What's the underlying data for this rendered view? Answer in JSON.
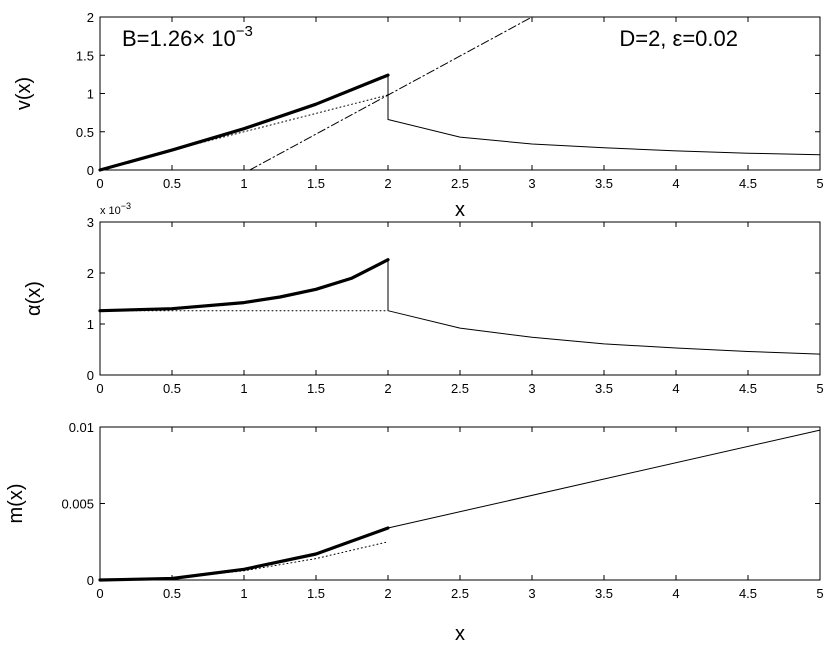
{
  "chart_data": [
    {
      "type": "line",
      "xlabel": "x",
      "ylabel": "v(x)",
      "xlim": [
        0,
        5
      ],
      "ylim": [
        0,
        2
      ],
      "x_ticks": [
        "0",
        "0.5",
        "1",
        "1.5",
        "2",
        "2.5",
        "3",
        "3.5",
        "4",
        "4.5",
        "5"
      ],
      "y_ticks": [
        "0",
        "0.5",
        "1",
        "1.5",
        "2"
      ],
      "annotations": [
        {
          "text": "B=1.26× 10",
          "sup": "−3",
          "position": "top-left"
        },
        {
          "text": "D=2, ε=0.02",
          "position": "top-right"
        }
      ],
      "series": [
        {
          "style": "thick",
          "color": "#000000",
          "x": [
            0,
            0.5,
            1,
            1.5,
            2
          ],
          "y": [
            0,
            0.26,
            0.54,
            0.86,
            1.24
          ]
        },
        {
          "style": "thin",
          "color": "#000000",
          "x": [
            2,
            2,
            2.5,
            3,
            3.5,
            4,
            4.5,
            5
          ],
          "y": [
            1.24,
            0.66,
            0.43,
            0.34,
            0.29,
            0.25,
            0.22,
            0.2
          ]
        },
        {
          "style": "dotted",
          "color": "#000000",
          "x": [
            0,
            0.5,
            1,
            1.5,
            2
          ],
          "y": [
            0,
            0.26,
            0.5,
            0.74,
            0.98
          ]
        },
        {
          "style": "dashdot",
          "color": "#000000",
          "x": [
            1.04,
            3
          ],
          "y": [
            0,
            2
          ]
        }
      ]
    },
    {
      "type": "line",
      "xlabel": "x",
      "ylabel": "α(x)",
      "xlim": [
        0,
        5
      ],
      "ylim": [
        0,
        3
      ],
      "y_multiplier": "x 10",
      "y_multiplier_exp": "−3",
      "x_ticks": [
        "0",
        "0.5",
        "1",
        "1.5",
        "2",
        "2.5",
        "3",
        "3.5",
        "4",
        "4.5",
        "5"
      ],
      "y_ticks": [
        "0",
        "1",
        "2",
        "3"
      ],
      "series": [
        {
          "style": "thick",
          "color": "#000000",
          "x": [
            0,
            0.5,
            1,
            1.25,
            1.5,
            1.75,
            2
          ],
          "y": [
            1.26,
            1.3,
            1.42,
            1.53,
            1.68,
            1.9,
            2.26
          ]
        },
        {
          "style": "thin",
          "color": "#000000",
          "x": [
            2,
            2,
            2.5,
            3,
            3.5,
            4,
            4.5,
            5
          ],
          "y": [
            2.26,
            1.26,
            0.92,
            0.74,
            0.61,
            0.53,
            0.46,
            0.41
          ]
        },
        {
          "style": "dotted",
          "color": "#000000",
          "x": [
            0,
            2
          ],
          "y": [
            1.26,
            1.26
          ]
        }
      ]
    },
    {
      "type": "line",
      "xlabel": "x",
      "ylabel": "m(x)",
      "xlim": [
        0,
        5
      ],
      "ylim": [
        0,
        0.01
      ],
      "x_ticks": [
        "0",
        "0.5",
        "1",
        "1.5",
        "2",
        "2.5",
        "3",
        "3.5",
        "4",
        "4.5",
        "5"
      ],
      "y_ticks": [
        "0",
        "0.005",
        "0.01"
      ],
      "series": [
        {
          "style": "thick",
          "color": "#000000",
          "x": [
            0,
            0.5,
            1,
            1.5,
            2
          ],
          "y": [
            0,
            0.0001,
            0.0007,
            0.0017,
            0.0034
          ]
        },
        {
          "style": "thin",
          "color": "#000000",
          "x": [
            2,
            5
          ],
          "y": [
            0.0034,
            0.0098
          ]
        },
        {
          "style": "dotted",
          "color": "#000000",
          "x": [
            0,
            0.5,
            1,
            1.5,
            2
          ],
          "y": [
            0,
            0.0001,
            0.0006,
            0.0014,
            0.0025
          ]
        }
      ]
    }
  ]
}
